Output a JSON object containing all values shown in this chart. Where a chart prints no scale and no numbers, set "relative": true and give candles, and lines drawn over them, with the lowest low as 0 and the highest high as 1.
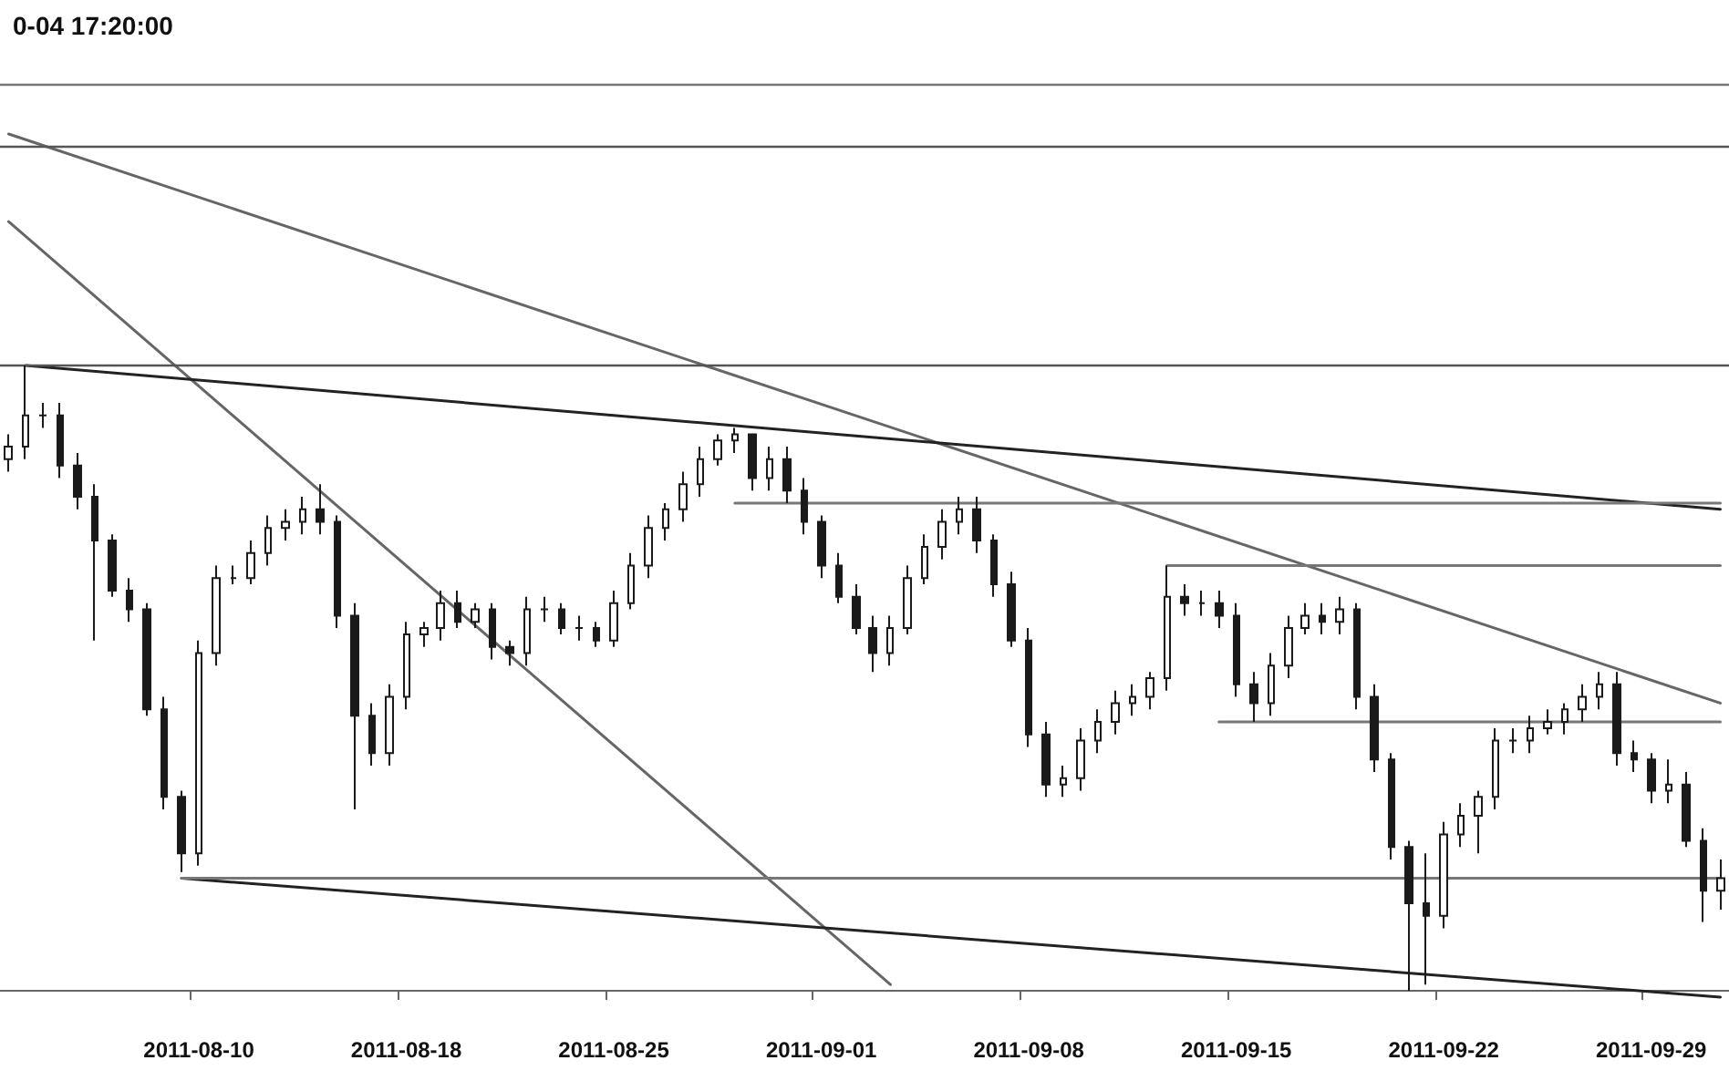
{
  "chart_data": {
    "type": "candlestick",
    "relative": true,
    "title": "0-04 17:20:00",
    "color": "#1a1a1a",
    "categories": [
      null,
      null,
      null,
      null,
      null,
      null,
      null,
      null,
      null,
      null,
      null,
      "2011-08-10",
      null,
      null,
      null,
      null,
      null,
      null,
      null,
      null,
      null,
      null,
      null,
      "2011-08-18",
      null,
      null,
      null,
      null,
      null,
      null,
      null,
      null,
      null,
      null,
      null,
      "2011-08-25",
      null,
      null,
      null,
      null,
      null,
      null,
      null,
      null,
      null,
      null,
      null,
      "2011-09-01",
      null,
      null,
      null,
      null,
      null,
      null,
      null,
      null,
      null,
      null,
      null,
      "2011-09-08",
      null,
      null,
      null,
      null,
      null,
      null,
      null,
      null,
      null,
      null,
      null,
      "2011-09-15",
      null,
      null,
      null,
      null,
      null,
      null,
      null,
      null,
      null,
      null,
      null,
      "2011-09-22",
      null,
      null,
      null,
      null,
      null,
      null,
      null,
      null,
      null,
      null,
      null,
      "2011-09-29",
      null,
      null,
      null,
      null
    ],
    "ohlc": [
      [
        0.85,
        0.89,
        0.83,
        0.87
      ],
      [
        0.87,
        1.0,
        0.85,
        0.92
      ],
      [
        0.92,
        0.94,
        0.9,
        0.92
      ],
      [
        0.92,
        0.94,
        0.82,
        0.84
      ],
      [
        0.84,
        0.86,
        0.77,
        0.79
      ],
      [
        0.79,
        0.81,
        0.56,
        0.72
      ],
      [
        0.72,
        0.73,
        0.63,
        0.64
      ],
      [
        0.64,
        0.66,
        0.59,
        0.61
      ],
      [
        0.61,
        0.62,
        0.44,
        0.45
      ],
      [
        0.45,
        0.47,
        0.29,
        0.31
      ],
      [
        0.31,
        0.32,
        0.19,
        0.22
      ],
      [
        0.22,
        0.56,
        0.2,
        0.54
      ],
      [
        0.54,
        0.68,
        0.52,
        0.66
      ],
      [
        0.66,
        0.68,
        0.65,
        0.66
      ],
      [
        0.66,
        0.72,
        0.65,
        0.7
      ],
      [
        0.7,
        0.76,
        0.68,
        0.74
      ],
      [
        0.74,
        0.77,
        0.72,
        0.75
      ],
      [
        0.75,
        0.79,
        0.73,
        0.77
      ],
      [
        0.77,
        0.81,
        0.73,
        0.75
      ],
      [
        0.75,
        0.76,
        0.58,
        0.6
      ],
      [
        0.6,
        0.62,
        0.29,
        0.44
      ],
      [
        0.44,
        0.46,
        0.36,
        0.38
      ],
      [
        0.38,
        0.49,
        0.36,
        0.47
      ],
      [
        0.47,
        0.59,
        0.45,
        0.57
      ],
      [
        0.57,
        0.59,
        0.55,
        0.58
      ],
      [
        0.58,
        0.64,
        0.56,
        0.62
      ],
      [
        0.62,
        0.64,
        0.58,
        0.59
      ],
      [
        0.59,
        0.62,
        0.58,
        0.61
      ],
      [
        0.61,
        0.62,
        0.53,
        0.55
      ],
      [
        0.55,
        0.56,
        0.52,
        0.54
      ],
      [
        0.54,
        0.63,
        0.52,
        0.61
      ],
      [
        0.61,
        0.63,
        0.59,
        0.61
      ],
      [
        0.61,
        0.62,
        0.57,
        0.58
      ],
      [
        0.58,
        0.6,
        0.56,
        0.58
      ],
      [
        0.58,
        0.59,
        0.55,
        0.56
      ],
      [
        0.56,
        0.64,
        0.55,
        0.62
      ],
      [
        0.62,
        0.7,
        0.61,
        0.68
      ],
      [
        0.68,
        0.76,
        0.66,
        0.74
      ],
      [
        0.74,
        0.78,
        0.72,
        0.77
      ],
      [
        0.77,
        0.83,
        0.75,
        0.81
      ],
      [
        0.81,
        0.87,
        0.79,
        0.85
      ],
      [
        0.85,
        0.89,
        0.84,
        0.88
      ],
      [
        0.88,
        0.9,
        0.86,
        0.89
      ],
      [
        0.89,
        0.89,
        0.8,
        0.82
      ],
      [
        0.82,
        0.87,
        0.8,
        0.85
      ],
      [
        0.85,
        0.87,
        0.78,
        0.8
      ],
      [
        0.8,
        0.82,
        0.73,
        0.75
      ],
      [
        0.75,
        0.76,
        0.66,
        0.68
      ],
      [
        0.68,
        0.7,
        0.62,
        0.63
      ],
      [
        0.63,
        0.65,
        0.57,
        0.58
      ],
      [
        0.58,
        0.6,
        0.51,
        0.54
      ],
      [
        0.54,
        0.6,
        0.52,
        0.58
      ],
      [
        0.58,
        0.68,
        0.57,
        0.66
      ],
      [
        0.66,
        0.73,
        0.65,
        0.71
      ],
      [
        0.71,
        0.77,
        0.69,
        0.75
      ],
      [
        0.75,
        0.79,
        0.73,
        0.77
      ],
      [
        0.77,
        0.79,
        0.7,
        0.72
      ],
      [
        0.72,
        0.73,
        0.63,
        0.65
      ],
      [
        0.65,
        0.67,
        0.55,
        0.56
      ],
      [
        0.56,
        0.58,
        0.39,
        0.41
      ],
      [
        0.41,
        0.43,
        0.31,
        0.33
      ],
      [
        0.33,
        0.36,
        0.31,
        0.34
      ],
      [
        0.34,
        0.42,
        0.32,
        0.4
      ],
      [
        0.4,
        0.45,
        0.38,
        0.43
      ],
      [
        0.43,
        0.48,
        0.41,
        0.46
      ],
      [
        0.46,
        0.49,
        0.44,
        0.47
      ],
      [
        0.47,
        0.51,
        0.45,
        0.5
      ],
      [
        0.5,
        0.68,
        0.48,
        0.63
      ],
      [
        0.63,
        0.65,
        0.6,
        0.62
      ],
      [
        0.62,
        0.64,
        0.6,
        0.62
      ],
      [
        0.62,
        0.64,
        0.58,
        0.6
      ],
      [
        0.6,
        0.62,
        0.47,
        0.49
      ],
      [
        0.49,
        0.51,
        0.43,
        0.46
      ],
      [
        0.46,
        0.54,
        0.44,
        0.52
      ],
      [
        0.52,
        0.6,
        0.5,
        0.58
      ],
      [
        0.58,
        0.62,
        0.57,
        0.6
      ],
      [
        0.6,
        0.62,
        0.57,
        0.59
      ],
      [
        0.59,
        0.63,
        0.57,
        0.61
      ],
      [
        0.61,
        0.62,
        0.45,
        0.47
      ],
      [
        0.47,
        0.49,
        0.35,
        0.37
      ],
      [
        0.37,
        0.38,
        0.21,
        0.23
      ],
      [
        0.23,
        0.24,
        0.0,
        0.14
      ],
      [
        0.14,
        0.22,
        0.01,
        0.12
      ],
      [
        0.12,
        0.27,
        0.1,
        0.25
      ],
      [
        0.25,
        0.3,
        0.23,
        0.28
      ],
      [
        0.28,
        0.32,
        0.22,
        0.31
      ],
      [
        0.31,
        0.42,
        0.29,
        0.4
      ],
      [
        0.4,
        0.42,
        0.38,
        0.4
      ],
      [
        0.4,
        0.44,
        0.38,
        0.42
      ],
      [
        0.42,
        0.45,
        0.41,
        0.43
      ],
      [
        0.43,
        0.46,
        0.41,
        0.45
      ],
      [
        0.45,
        0.49,
        0.43,
        0.47
      ],
      [
        0.47,
        0.51,
        0.45,
        0.49
      ],
      [
        0.49,
        0.51,
        0.36,
        0.38
      ],
      [
        0.38,
        0.4,
        0.35,
        0.37
      ],
      [
        0.37,
        0.38,
        0.3,
        0.32
      ],
      [
        0.32,
        0.37,
        0.3,
        0.33
      ],
      [
        0.33,
        0.35,
        0.23,
        0.24
      ],
      [
        0.24,
        0.26,
        0.11,
        0.16
      ],
      [
        0.16,
        0.21,
        0.13,
        0.18
      ]
    ],
    "series": [
      {
        "type": "line",
        "color": "#666666",
        "values": [
          1.37,
          null,
          null,
          null,
          null,
          null,
          null,
          null,
          null,
          null,
          null,
          null,
          null,
          null,
          null,
          null,
          null,
          null,
          null,
          null,
          null,
          null,
          null,
          null,
          null,
          null,
          null,
          null,
          null,
          null,
          null,
          null,
          null,
          null,
          null,
          null,
          null,
          null,
          null,
          null,
          null,
          null,
          null,
          null,
          null,
          null,
          null,
          null,
          null,
          null,
          null,
          null,
          null,
          null,
          null,
          null,
          null,
          null,
          null,
          null,
          null,
          null,
          null,
          null,
          null,
          null,
          null,
          null,
          null,
          null,
          null,
          null,
          null,
          null,
          null,
          null,
          null,
          null,
          null,
          null,
          null,
          null,
          null,
          null,
          null,
          null,
          null,
          null,
          null,
          null,
          null,
          null,
          null,
          null,
          null,
          null,
          null,
          null,
          null,
          0.46
        ]
      },
      {
        "type": "line",
        "color": "#666666",
        "values": [
          1.23,
          null,
          null,
          null,
          null,
          null,
          null,
          null,
          null,
          null,
          null,
          null,
          null,
          null,
          null,
          null,
          null,
          null,
          null,
          null,
          null,
          null,
          null,
          null,
          null,
          null,
          null,
          null,
          null,
          null,
          null,
          null,
          null,
          null,
          null,
          null,
          null,
          null,
          null,
          null,
          null,
          null,
          null,
          null,
          null,
          null,
          null,
          null,
          null,
          null,
          null,
          0.01,
          null,
          null,
          null,
          null,
          null,
          null,
          null,
          null,
          null,
          null,
          null,
          null,
          null,
          null,
          null,
          null,
          null,
          null,
          null,
          null,
          null,
          null,
          null,
          null,
          null,
          null,
          null,
          null,
          null,
          null,
          null,
          null,
          null,
          null,
          null,
          null,
          null,
          null,
          null,
          null,
          null,
          null,
          null,
          null,
          null,
          null,
          null,
          null
        ]
      },
      {
        "type": "line",
        "color": "#222222",
        "values": [
          null,
          1.0,
          null,
          null,
          null,
          null,
          null,
          null,
          null,
          null,
          null,
          null,
          null,
          null,
          null,
          null,
          null,
          null,
          null,
          null,
          null,
          null,
          null,
          null,
          null,
          null,
          null,
          null,
          null,
          null,
          null,
          null,
          null,
          null,
          null,
          null,
          null,
          null,
          null,
          null,
          null,
          null,
          null,
          null,
          null,
          null,
          null,
          null,
          null,
          null,
          null,
          null,
          null,
          null,
          null,
          null,
          null,
          null,
          null,
          null,
          null,
          null,
          null,
          null,
          null,
          null,
          null,
          null,
          null,
          null,
          null,
          null,
          null,
          null,
          null,
          null,
          null,
          null,
          null,
          null,
          null,
          null,
          null,
          null,
          null,
          null,
          null,
          null,
          null,
          null,
          null,
          null,
          null,
          null,
          null,
          null,
          null,
          null,
          null,
          0.77
        ]
      },
      {
        "type": "line",
        "color": "#222222",
        "values": [
          null,
          null,
          null,
          null,
          null,
          null,
          null,
          null,
          null,
          null,
          0.18,
          null,
          null,
          null,
          null,
          null,
          null,
          null,
          null,
          null,
          null,
          null,
          null,
          null,
          null,
          null,
          null,
          null,
          null,
          null,
          null,
          null,
          null,
          null,
          null,
          null,
          null,
          null,
          null,
          null,
          null,
          null,
          null,
          null,
          null,
          null,
          null,
          null,
          null,
          null,
          null,
          null,
          null,
          null,
          null,
          null,
          null,
          null,
          null,
          null,
          null,
          null,
          null,
          null,
          null,
          null,
          null,
          null,
          null,
          null,
          null,
          null,
          null,
          null,
          null,
          null,
          null,
          null,
          null,
          null,
          null,
          null,
          null,
          null,
          null,
          null,
          null,
          null,
          null,
          null,
          null,
          null,
          null,
          null,
          null,
          null,
          null,
          null,
          null,
          -0.01
        ]
      },
      {
        "type": "line",
        "color": "#777777",
        "values": [
          null,
          null,
          null,
          null,
          null,
          null,
          null,
          null,
          null,
          null,
          null,
          null,
          null,
          null,
          null,
          null,
          null,
          null,
          null,
          null,
          null,
          null,
          null,
          null,
          null,
          null,
          null,
          null,
          null,
          null,
          null,
          null,
          null,
          null,
          null,
          null,
          null,
          null,
          null,
          null,
          null,
          null,
          0.78,
          null,
          null,
          null,
          null,
          null,
          null,
          null,
          null,
          null,
          null,
          null,
          null,
          null,
          null,
          null,
          null,
          null,
          null,
          null,
          null,
          null,
          null,
          null,
          null,
          null,
          null,
          null,
          null,
          null,
          null,
          null,
          null,
          null,
          null,
          null,
          null,
          null,
          null,
          null,
          null,
          null,
          null,
          null,
          null,
          null,
          null,
          null,
          null,
          null,
          null,
          null,
          null,
          null,
          null,
          null,
          null,
          0.78
        ]
      },
      {
        "type": "line",
        "color": "#777777",
        "values": [
          null,
          null,
          null,
          null,
          null,
          null,
          null,
          null,
          null,
          null,
          null,
          null,
          null,
          null,
          null,
          null,
          null,
          null,
          null,
          null,
          null,
          null,
          null,
          null,
          null,
          null,
          null,
          null,
          null,
          null,
          null,
          null,
          null,
          null,
          null,
          null,
          null,
          null,
          null,
          null,
          null,
          null,
          null,
          null,
          null,
          null,
          null,
          null,
          null,
          null,
          null,
          null,
          null,
          null,
          null,
          null,
          null,
          null,
          null,
          null,
          null,
          null,
          null,
          null,
          null,
          null,
          null,
          0.68,
          null,
          null,
          null,
          null,
          null,
          null,
          null,
          null,
          null,
          null,
          null,
          null,
          null,
          null,
          null,
          null,
          null,
          null,
          null,
          null,
          null,
          null,
          null,
          null,
          null,
          null,
          null,
          null,
          null,
          null,
          null,
          0.68
        ]
      },
      {
        "type": "line",
        "color": "#777777",
        "values": [
          null,
          null,
          null,
          null,
          null,
          null,
          null,
          null,
          null,
          null,
          null,
          null,
          null,
          null,
          null,
          null,
          null,
          null,
          null,
          null,
          null,
          null,
          null,
          null,
          null,
          null,
          null,
          null,
          null,
          null,
          null,
          null,
          null,
          null,
          null,
          null,
          null,
          null,
          null,
          null,
          null,
          null,
          null,
          null,
          null,
          null,
          null,
          null,
          null,
          null,
          null,
          null,
          null,
          null,
          null,
          null,
          null,
          null,
          null,
          null,
          null,
          null,
          null,
          null,
          null,
          null,
          null,
          null,
          null,
          null,
          0.43,
          null,
          null,
          null,
          null,
          null,
          null,
          null,
          null,
          null,
          null,
          null,
          null,
          null,
          null,
          null,
          null,
          null,
          null,
          null,
          null,
          null,
          null,
          null,
          null,
          null,
          null,
          null,
          null,
          0.43
        ]
      },
      {
        "type": "line",
        "color": "#777777",
        "values": [
          null,
          null,
          null,
          null,
          null,
          null,
          null,
          null,
          null,
          null,
          0.18,
          null,
          null,
          null,
          null,
          null,
          null,
          null,
          null,
          null,
          null,
          null,
          null,
          null,
          null,
          null,
          null,
          null,
          null,
          null,
          null,
          null,
          null,
          null,
          null,
          null,
          null,
          null,
          null,
          null,
          null,
          null,
          null,
          null,
          null,
          null,
          null,
          null,
          null,
          null,
          null,
          null,
          null,
          null,
          null,
          null,
          null,
          null,
          null,
          null,
          null,
          null,
          null,
          null,
          null,
          null,
          null,
          null,
          null,
          null,
          null,
          null,
          null,
          null,
          null,
          null,
          null,
          null,
          null,
          null,
          null,
          null,
          null,
          null,
          null,
          null,
          null,
          null,
          null,
          null,
          null,
          null,
          null,
          null,
          null,
          null,
          null,
          null,
          null,
          0.18
        ]
      }
    ],
    "ref_lines": [
      {
        "axis": "y",
        "value": 1.45,
        "color": "#777777"
      },
      {
        "axis": "y",
        "value": 1.35,
        "color": "#555555"
      },
      {
        "axis": "y",
        "value": 1.0,
        "color": "#555555"
      }
    ]
  }
}
